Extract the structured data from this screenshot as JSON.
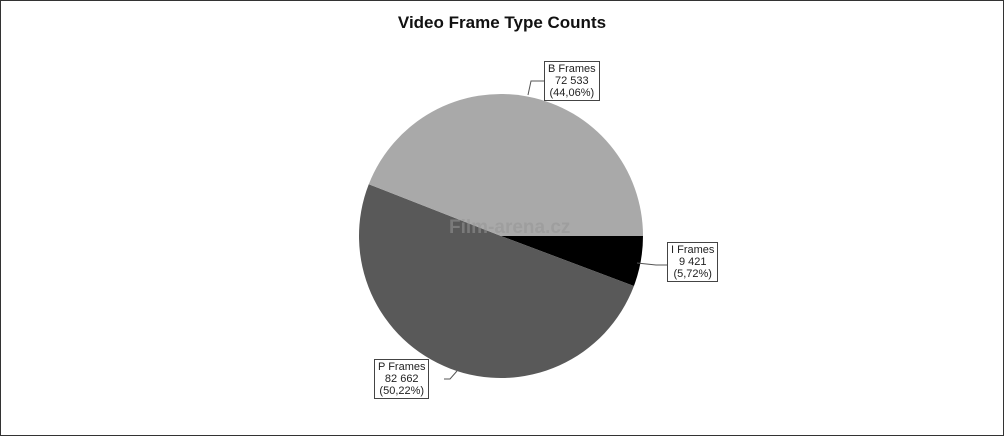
{
  "chart_data": {
    "type": "pie",
    "title": "Video Frame Type Counts",
    "slices": [
      {
        "name": "I Frames",
        "value": 9421,
        "value_label": "9 421",
        "percent_label": "(5,72%)",
        "color": "#000000"
      },
      {
        "name": "P Frames",
        "value": 82662,
        "value_label": "82 662",
        "percent_label": "(50,22%)",
        "color": "#595959"
      },
      {
        "name": "B Frames",
        "value": 72533,
        "value_label": "72 533",
        "percent_label": "(44,06%)",
        "color": "#a9a9a9"
      }
    ],
    "start_angle": "3 o'clock, clockwise",
    "legend": "none (callout labels)"
  },
  "watermark": "Film-arena.cz"
}
